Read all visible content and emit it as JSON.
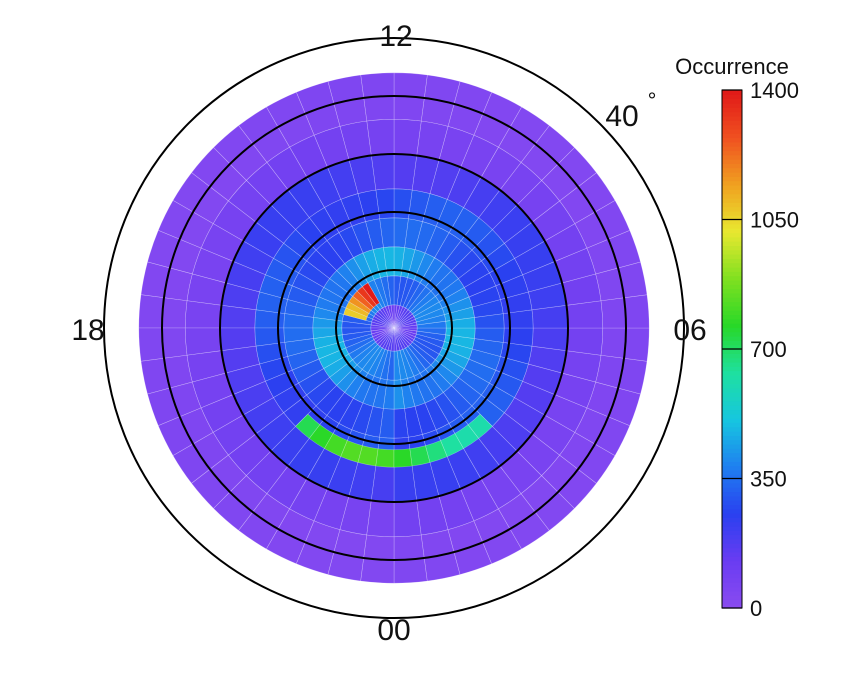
{
  "chart_data": {
    "type": "heatmap",
    "projection": "polar (magnetic local time vs latitude)",
    "mlt_labels": {
      "top": "12",
      "right": "06",
      "bottom": "00",
      "left": "18"
    },
    "latitude_label": "40",
    "latitude_label_degree": "°",
    "colorbar": {
      "title": "Occurrence",
      "min": 0,
      "max": 1400,
      "ticks": [
        0,
        350,
        700,
        1050,
        1400
      ],
      "colormap": [
        "#8b4cf0",
        "#6a3cf2",
        "#2a40f0",
        "#1f7ff0",
        "#16c6e0",
        "#1ee0a0",
        "#28d828",
        "#80e020",
        "#e8e830",
        "#f0a020",
        "#f05020",
        "#e01818"
      ]
    },
    "colatitude_rings_deg": [
      10,
      20,
      30,
      40,
      50
    ],
    "occurrence_bands": [
      {
        "colat_inner": 0,
        "colat_outer": 4,
        "mlt_start": 0,
        "mlt_end": 24,
        "value": 150
      },
      {
        "colat_inner": 4,
        "colat_outer": 9,
        "mlt_start": 0,
        "mlt_end": 24,
        "value": 350
      },
      {
        "colat_inner": 5,
        "colat_outer": 9,
        "mlt_start": 14,
        "mlt_end": 17,
        "value": 1250
      },
      {
        "colat_inner": 9,
        "colat_outer": 14,
        "mlt_start": 0,
        "mlt_end": 24,
        "value": 420
      },
      {
        "colat_inner": 14,
        "colat_outer": 19,
        "mlt_start": 0,
        "mlt_end": 24,
        "value": 300
      },
      {
        "colat_inner": 19,
        "colat_outer": 24,
        "mlt_start": 0,
        "mlt_end": 24,
        "value": 280
      },
      {
        "colat_inner": 21,
        "colat_outer": 26,
        "mlt_start": 21,
        "mlt_end": 27,
        "value": 720
      },
      {
        "colat_inner": 24,
        "colat_outer": 30,
        "mlt_start": 0,
        "mlt_end": 24,
        "value": 200
      },
      {
        "colat_inner": 30,
        "colat_outer": 36,
        "mlt_start": 0,
        "mlt_end": 24,
        "value": 80
      },
      {
        "colat_inner": 36,
        "colat_outer": 44,
        "mlt_start": 0,
        "mlt_end": 24,
        "value": 40
      }
    ]
  }
}
